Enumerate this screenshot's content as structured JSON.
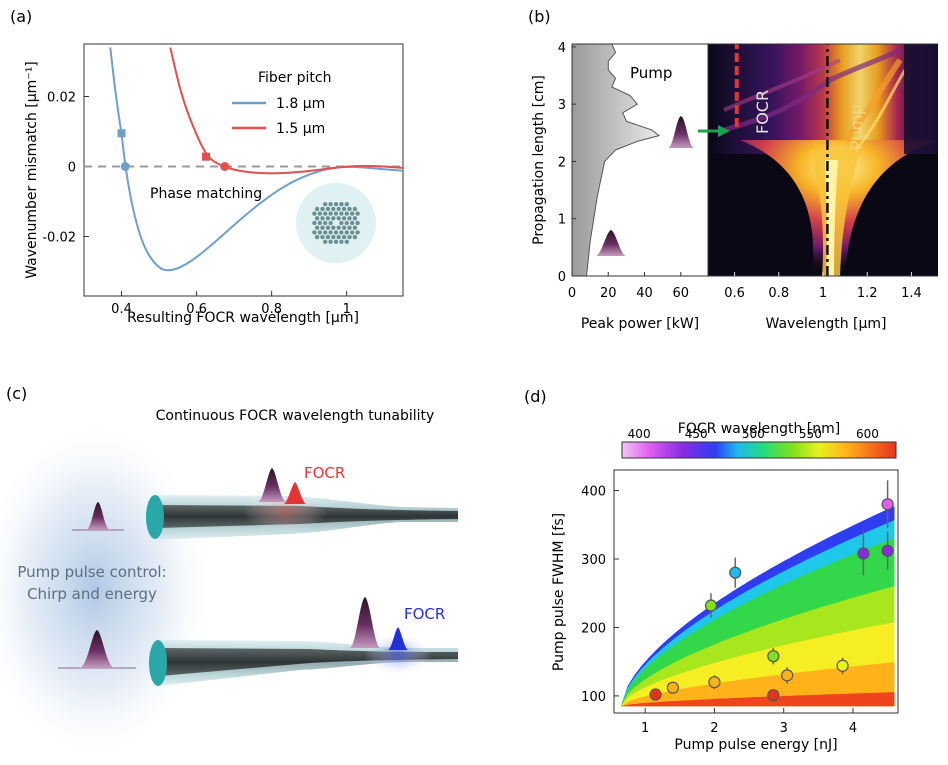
{
  "panels": {
    "a": {
      "label": "(a)"
    },
    "b": {
      "label": "(b)"
    },
    "c": {
      "label": "(c)"
    },
    "d": {
      "label": "(d)"
    }
  },
  "colors": {
    "blue_curve": "#6f9fcb",
    "red_curve": "#e0504f",
    "dashed": "#9a9a9a",
    "focr_red": "#e43535",
    "focr_blue": "#2330d6",
    "pump_purple": "#5a2a52",
    "arrow_green": "#19a34a"
  },
  "chart_data": [
    {
      "id": "a",
      "type": "line",
      "xlabel": "Resulting FOCR wavelength [μm]",
      "ylabel": "Wavenumber mismatch [μm⁻¹]",
      "xlim": [
        0.3,
        1.15
      ],
      "ylim": [
        -0.037,
        0.035
      ],
      "xticks": [
        0.4,
        0.6,
        0.8,
        1
      ],
      "xticklabels": [
        "0.4",
        "0.6",
        "0.8",
        "1"
      ],
      "yticks": [
        0.02,
        0,
        -0.02
      ],
      "yticklabels": [
        "0.02",
        "0",
        "-0.02"
      ],
      "legend_title": "Fiber pitch",
      "annotation": "Phase matching",
      "series": [
        {
          "name": "1.8 μm",
          "color": "#6f9fcb",
          "x": [
            0.37,
            0.385,
            0.4,
            0.41,
            0.43,
            0.46,
            0.5,
            0.53,
            0.56,
            0.6,
            0.65,
            0.7,
            0.75,
            0.8,
            0.85,
            0.9,
            0.95,
            1.0,
            1.05,
            1.1,
            1.15
          ],
          "y": [
            0.034,
            0.02,
            0.0095,
            0.0,
            -0.0125,
            -0.0235,
            -0.0293,
            -0.0298,
            -0.0287,
            -0.026,
            -0.0215,
            -0.0167,
            -0.0121,
            -0.008,
            -0.0046,
            -0.0022,
            -0.0006,
            0.0,
            -0.0003,
            -0.0008,
            -0.0012
          ],
          "markers": [
            {
              "x": 0.4,
              "y": 0.0095,
              "shape": "square"
            },
            {
              "x": 0.41,
              "y": 0.0,
              "shape": "circle"
            }
          ]
        },
        {
          "name": "1.5 μm",
          "color": "#e0504f",
          "x": [
            0.53,
            0.56,
            0.6,
            0.63,
            0.66,
            0.7,
            0.75,
            0.8,
            0.85,
            0.9,
            0.95,
            1.0,
            1.05,
            1.1,
            1.15
          ],
          "y": [
            0.034,
            0.02,
            0.0088,
            0.0026,
            0.0005,
            -0.001,
            -0.0018,
            -0.002,
            -0.0018,
            -0.0013,
            -0.0006,
            0.0,
            0.0002,
            0.0,
            -0.0004
          ],
          "markers": [
            {
              "x": 0.625,
              "y": 0.0028,
              "shape": "square"
            },
            {
              "x": 0.675,
              "y": 0.0,
              "shape": "circle"
            }
          ]
        }
      ]
    },
    {
      "id": "b-left",
      "type": "area",
      "xlabel": "Peak power [kW]",
      "ylabel": "Propagation length [cm]",
      "xlim": [
        0,
        75
      ],
      "ylim": [
        0,
        4.05
      ],
      "xticks": [
        0,
        20,
        40,
        60
      ],
      "xticklabels": [
        "0",
        "20",
        "40",
        "60"
      ],
      "yticks": [
        0,
        1,
        2,
        3,
        4
      ],
      "yticklabels": [
        "0",
        "1",
        "2",
        "3",
        "4"
      ],
      "annotation": "Pump",
      "series": [
        {
          "name": "Pump",
          "y": [
            0,
            0.3,
            0.6,
            1.0,
            1.4,
            1.7,
            2.0,
            2.2,
            2.35,
            2.45,
            2.55,
            2.7,
            2.85,
            3.0,
            3.15,
            3.3,
            3.45,
            3.6,
            3.75,
            3.9,
            4.05
          ],
          "x": [
            8,
            9,
            10,
            12,
            14,
            16,
            18,
            24,
            36,
            48,
            44,
            30,
            28,
            36,
            32,
            22,
            24,
            20,
            20,
            24,
            22
          ]
        }
      ]
    },
    {
      "id": "b-right",
      "type": "heatmap",
      "xlabel": "Wavelength [μm]",
      "xlim": [
        0.48,
        1.52
      ],
      "xticks": [
        0.6,
        0.8,
        1,
        1.2,
        1.4
      ],
      "xticklabels": [
        "0.6",
        "0.8",
        "1",
        "1.2",
        "1.4"
      ],
      "annotations": [
        "FOCR",
        "Pump"
      ],
      "marker_lines": [
        {
          "name": "FOCR",
          "x": 0.61,
          "y_from": 2.6,
          "y_to": 4.05,
          "color": "#e43535"
        },
        {
          "name": "Pump",
          "x": 1.02,
          "y_from": 0,
          "y_to": 4.05,
          "color": "#111111"
        }
      ]
    },
    {
      "id": "d",
      "type": "scatter",
      "xlabel": "Pump pulse energy [nJ]",
      "ylabel": "Pump pulse FWHM [fs]",
      "colorbar_label": "FOCR wavelength [nm]",
      "colorbar_ticks": [
        400,
        450,
        500,
        550,
        600
      ],
      "colorbar_range": [
        385,
        625
      ],
      "xlim": [
        0.55,
        4.65
      ],
      "ylim": [
        75,
        430
      ],
      "xticks": [
        1,
        2,
        3,
        4
      ],
      "xticklabels": [
        "1",
        "2",
        "3",
        "4"
      ],
      "yticks": [
        100,
        200,
        300,
        400
      ],
      "yticklabels": [
        "100",
        "200",
        "300",
        "400"
      ],
      "points": [
        {
          "x": 1.15,
          "y": 102,
          "err": 8,
          "wavelength": 585
        },
        {
          "x": 1.4,
          "y": 112,
          "err": 8,
          "wavelength": 560
        },
        {
          "x": 1.95,
          "y": 232,
          "err": 18,
          "wavelength": 520
        },
        {
          "x": 2.0,
          "y": 120,
          "err": 10,
          "wavelength": 560
        },
        {
          "x": 2.3,
          "y": 280,
          "err": 22,
          "wavelength": 470
        },
        {
          "x": 2.85,
          "y": 158,
          "err": 12,
          "wavelength": 525
        },
        {
          "x": 2.85,
          "y": 101,
          "err": 5,
          "wavelength": 615
        },
        {
          "x": 3.05,
          "y": 130,
          "err": 12,
          "wavelength": 560
        },
        {
          "x": 3.85,
          "y": 144,
          "err": 12,
          "wavelength": 545
        },
        {
          "x": 4.15,
          "y": 308,
          "err": 32,
          "wavelength": 420
        },
        {
          "x": 4.5,
          "y": 312,
          "err": 28,
          "wavelength": 415
        },
        {
          "x": 4.5,
          "y": 380,
          "err": 35,
          "wavelength": 410
        }
      ]
    }
  ],
  "schematic": {
    "title": "Continuous FOCR wavelength tunability",
    "control_line1": "Pump pulse control:",
    "control_line2": "Chirp and energy",
    "focr_top": "FOCR",
    "focr_bottom": "FOCR"
  }
}
